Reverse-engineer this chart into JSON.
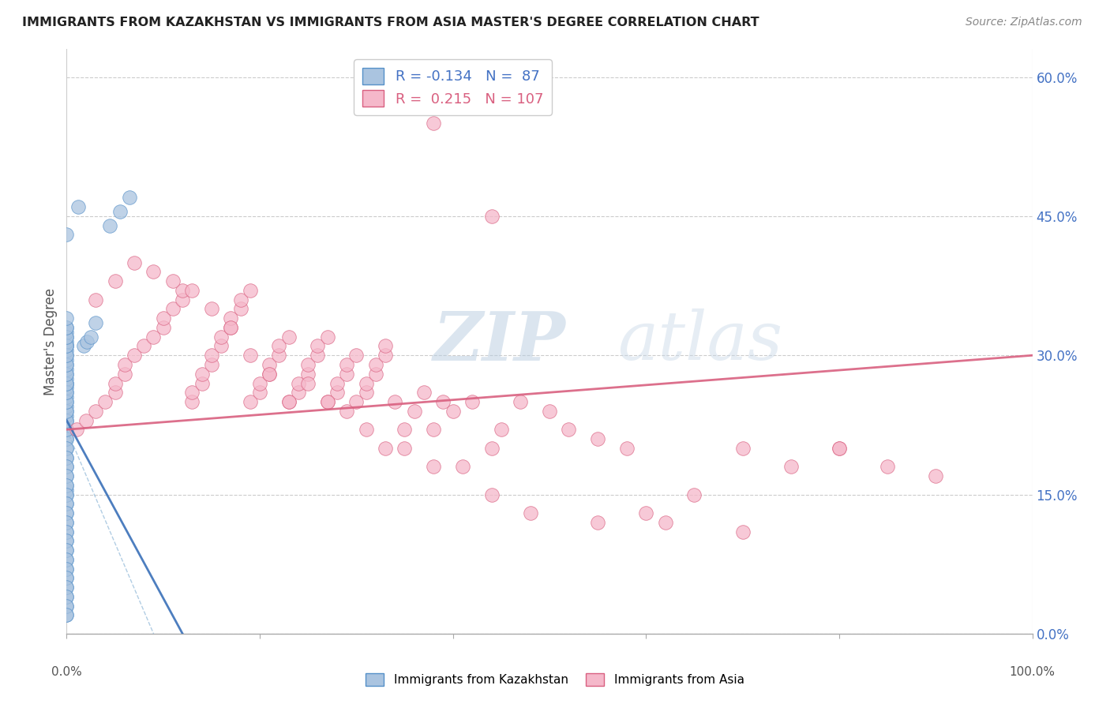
{
  "title": "IMMIGRANTS FROM KAZAKHSTAN VS IMMIGRANTS FROM ASIA MASTER'S DEGREE CORRELATION CHART",
  "source": "Source: ZipAtlas.com",
  "ylabel": "Master's Degree",
  "watermark_zip": "ZIP",
  "watermark_atlas": "atlas",
  "xlim": [
    0.0,
    100.0
  ],
  "ylim": [
    0.0,
    63.0
  ],
  "right_ytick_vals": [
    0.0,
    15.0,
    30.0,
    45.0,
    60.0
  ],
  "right_ytick_labels": [
    "0.0%",
    "15.0%",
    "30.0%",
    "45.0%",
    "60.0%"
  ],
  "blue_scatter_color": "#aac4e0",
  "blue_edge_color": "#5590c8",
  "pink_scatter_color": "#f5b8ca",
  "pink_edge_color": "#d96080",
  "blue_trend_color": "#3a70b8",
  "pink_trend_color": "#d96080",
  "blue_dash_color": "#90b8d8",
  "grid_color": "#cccccc",
  "title_color": "#222222",
  "source_color": "#888888",
  "right_axis_color": "#4472c4",
  "legend1_r": "-0.134",
  "legend1_n": "87",
  "legend2_r": "0.215",
  "legend2_n": "107",
  "kazakhstan_x": [
    0,
    0,
    0,
    0,
    0,
    0,
    0,
    0,
    0,
    0,
    0,
    0,
    0,
    0,
    0,
    0,
    0,
    0,
    0,
    0,
    0,
    0,
    0,
    0,
    0,
    0,
    0,
    0,
    0,
    0,
    0,
    0,
    0,
    0,
    0,
    0,
    0,
    0,
    0,
    0,
    0,
    0,
    0,
    0,
    0,
    0,
    0,
    0,
    0,
    0,
    0,
    0,
    0,
    0,
    0,
    0,
    0,
    0,
    0,
    0,
    0,
    0,
    0,
    0,
    0,
    0,
    0,
    0,
    0,
    0,
    0,
    0,
    0,
    0,
    0,
    0,
    0,
    0,
    0,
    1.2,
    1.8,
    2.1,
    2.5,
    3.0,
    4.5,
    5.5,
    6.5
  ],
  "kazakhstan_y": [
    2,
    3,
    4,
    5,
    6,
    7,
    8,
    9,
    10,
    11,
    12,
    13,
    14,
    15,
    15.5,
    16,
    17,
    18,
    19,
    20,
    21,
    22,
    23,
    23.5,
    24,
    24.5,
    25,
    25.5,
    26,
    26.5,
    27,
    27,
    27.5,
    28,
    28.5,
    29,
    29.5,
    30,
    30.5,
    31,
    31,
    31.5,
    32,
    32.5,
    33,
    21,
    20,
    19,
    18,
    17,
    16,
    15,
    14,
    13,
    12,
    11,
    10,
    9,
    8,
    7,
    6,
    5,
    4,
    3,
    2,
    22,
    23,
    24,
    25,
    26,
    27,
    28,
    29,
    30,
    31,
    32,
    33,
    34,
    43,
    46,
    31,
    31.5,
    32,
    33.5,
    44,
    45.5,
    47
  ],
  "asia_x": [
    1,
    2,
    3,
    4,
    5,
    5,
    6,
    6,
    7,
    8,
    9,
    10,
    10,
    11,
    12,
    12,
    13,
    13,
    14,
    14,
    15,
    15,
    16,
    16,
    17,
    17,
    18,
    18,
    19,
    19,
    20,
    20,
    21,
    21,
    22,
    22,
    23,
    23,
    24,
    24,
    25,
    25,
    26,
    26,
    27,
    27,
    28,
    28,
    29,
    29,
    30,
    30,
    31,
    31,
    32,
    32,
    33,
    33,
    34,
    35,
    36,
    37,
    38,
    39,
    40,
    42,
    44,
    45,
    47,
    50,
    52,
    55,
    58,
    60,
    65,
    70,
    75,
    80,
    85,
    90,
    3,
    5,
    7,
    9,
    11,
    13,
    15,
    17,
    19,
    21,
    23,
    25,
    27,
    29,
    31,
    33,
    35,
    38,
    41,
    44,
    48,
    55,
    62,
    70,
    80,
    38,
    44
  ],
  "asia_y": [
    22,
    23,
    24,
    25,
    26,
    27,
    28,
    29,
    30,
    31,
    32,
    33,
    34,
    35,
    36,
    37,
    25,
    26,
    27,
    28,
    29,
    30,
    31,
    32,
    33,
    34,
    35,
    36,
    37,
    25,
    26,
    27,
    28,
    29,
    30,
    31,
    32,
    25,
    26,
    27,
    28,
    29,
    30,
    31,
    32,
    25,
    26,
    27,
    28,
    29,
    30,
    25,
    26,
    27,
    28,
    29,
    30,
    31,
    25,
    22,
    24,
    26,
    22,
    25,
    24,
    25,
    20,
    22,
    25,
    24,
    22,
    21,
    20,
    13,
    15,
    20,
    18,
    20,
    18,
    17,
    36,
    38,
    40,
    39,
    38,
    37,
    35,
    33,
    30,
    28,
    25,
    27,
    25,
    24,
    22,
    20,
    20,
    18,
    18,
    15,
    13,
    12,
    12,
    11,
    20,
    55,
    45
  ]
}
